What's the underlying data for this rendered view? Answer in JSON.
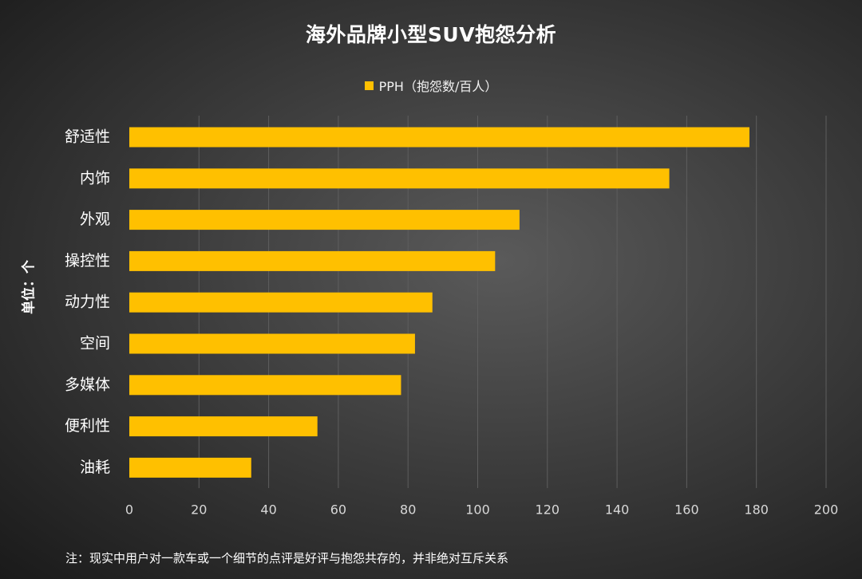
{
  "colors": {
    "bar": "#FFC000",
    "grid": "#5e5e5e"
  },
  "chart_data": {
    "type": "bar",
    "orientation": "horizontal",
    "title": "海外品牌小型SUV抱怨分析",
    "legend": "PPH（抱怨数/百人）",
    "legend_position": "top",
    "ylabel": "单位：个",
    "xlabel": "",
    "categories": [
      "舒适性",
      "内饰",
      "外观",
      "操控性",
      "动力性",
      "空间",
      "多媒体",
      "便利性",
      "油耗"
    ],
    "series": [
      {
        "name": "PPH（抱怨数/百人）",
        "values": [
          178,
          155,
          112,
          105,
          87,
          82,
          78,
          54,
          35
        ]
      }
    ],
    "xlim": [
      0,
      200
    ],
    "xticks": [
      0,
      20,
      40,
      60,
      80,
      100,
      120,
      140,
      160,
      180,
      200
    ],
    "grid": true
  },
  "footnote": "注：现实中用户对一款车或一个细节的点评是好评与抱怨共存的，并非绝对互斥关系"
}
